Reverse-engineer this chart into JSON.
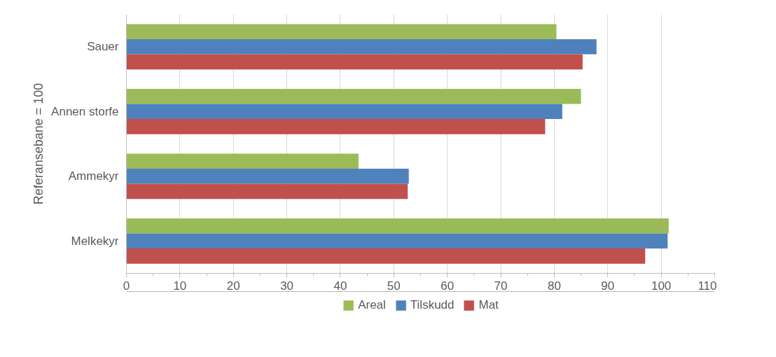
{
  "chart_data": {
    "type": "bar",
    "orientation": "horizontal",
    "ylabel": "Referansebane = 100",
    "categories": [
      "Sauer",
      "Annen storfe",
      "Ammekyr",
      "Melkekyr"
    ],
    "series": [
      {
        "name": "Areal",
        "color": "#9bbb59",
        "values": [
          80.4,
          85.0,
          43.4,
          101.4
        ]
      },
      {
        "name": "Tilskudd",
        "color": "#4f81bd",
        "values": [
          87.9,
          81.5,
          52.8,
          101.2
        ]
      },
      {
        "name": "Mat",
        "color": "#c0504d",
        "values": [
          85.3,
          78.3,
          52.6,
          97.0
        ]
      }
    ],
    "xlim": [
      0,
      110
    ],
    "xticks": [
      0,
      10,
      20,
      30,
      40,
      50,
      60,
      70,
      80,
      90,
      100,
      110
    ],
    "grid": "x",
    "legend": "bottom"
  }
}
